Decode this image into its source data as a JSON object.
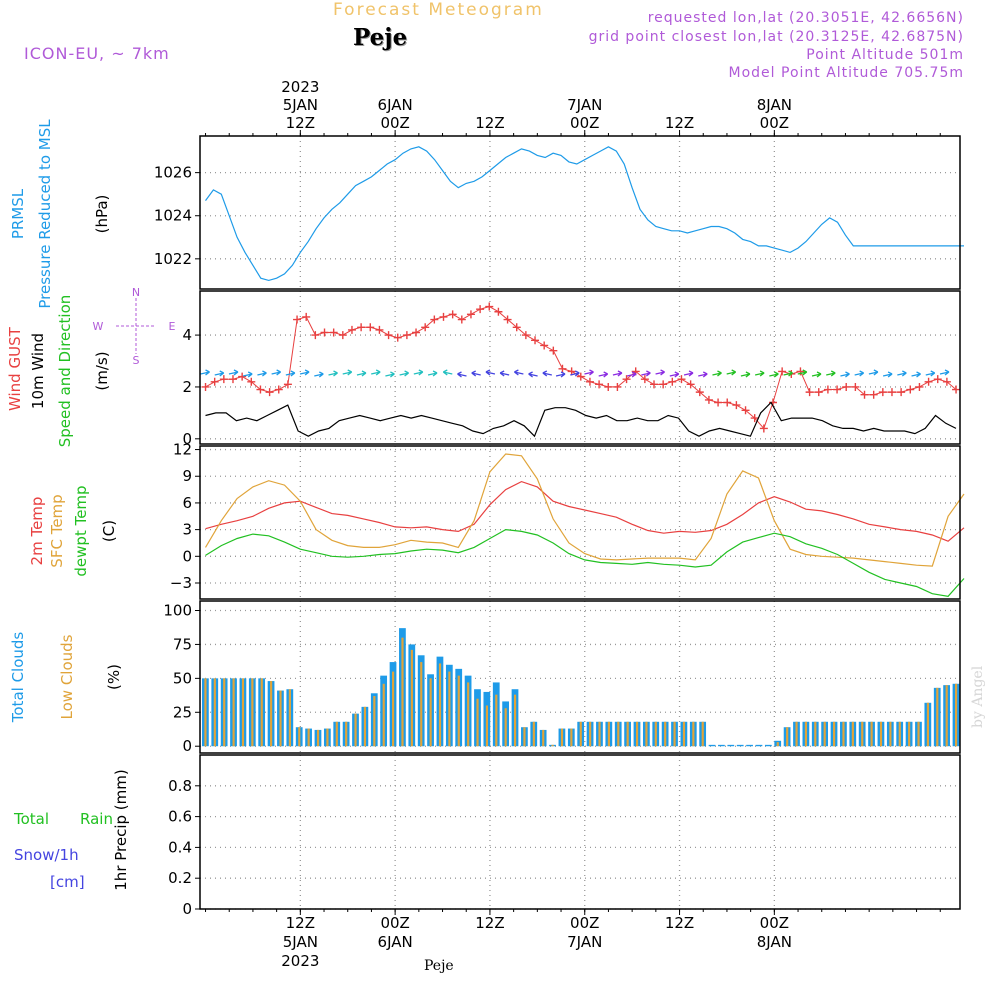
{
  "header": {
    "title": "Forecast Meteogram",
    "location": "Peje",
    "model": "ICON-EU, ~ 7km",
    "requested": "requested lon,lat (20.3051E, 42.6656N)",
    "gridpoint": "grid point closest lon,lat (20.3125E, 42.6875N)",
    "point_alt": "Point Altitude 501m",
    "model_alt": "Model Point Altitude 705.75m"
  },
  "footer": {
    "location": "Peje",
    "credit": "by Angel"
  },
  "time_axis": {
    "top_year": "2023",
    "ticks": [
      {
        "t": 12,
        "top": "12Z",
        "top2": "5JAN",
        "bottom": "12Z",
        "bottom2": "5JAN",
        "bottom3": "2023"
      },
      {
        "t": 24,
        "top": "00Z",
        "top2": "6JAN",
        "bottom": "00Z",
        "bottom2": "6JAN"
      },
      {
        "t": 36,
        "top": "12Z",
        "bottom": "12Z"
      },
      {
        "t": 48,
        "top": "00Z",
        "top2": "7JAN",
        "bottom": "00Z",
        "bottom2": "7JAN"
      },
      {
        "t": 60,
        "top": "12Z",
        "bottom": "12Z"
      },
      {
        "t": 72,
        "top": "00Z",
        "top2": "8JAN",
        "bottom": "00Z",
        "bottom2": "8JAN"
      }
    ]
  },
  "colors": {
    "pressure": "#1e9be8",
    "gust": "#e84040",
    "wind": "#000000",
    "temp2m": "#e84040",
    "sfctemp": "#e0a43a",
    "dewpt": "#22c022",
    "total_clouds": "#1e9be8",
    "low_clouds": "#e0a43a",
    "rain": "#22c022",
    "snow": "#4444e0",
    "header_purple": "#b05ad8"
  },
  "chart_data": [
    {
      "panel": "pressure",
      "type": "line",
      "label_colored": "PRMSL",
      "label_colored2": "Pressure Reduced to MSL",
      "unit": "(hPa)",
      "ylim": [
        1020.6,
        1027.7
      ],
      "yticks": [
        1022,
        1024,
        1026
      ],
      "series": [
        {
          "color_key": "pressure",
          "t": [
            0,
            1,
            2,
            3,
            4,
            5,
            6,
            7,
            8,
            9,
            10,
            11,
            12,
            13,
            14,
            15,
            16,
            17,
            18,
            19,
            20,
            21,
            22,
            23,
            24,
            25,
            26,
            27,
            28,
            29,
            30,
            31,
            32,
            33,
            34,
            35,
            36,
            37,
            38,
            39,
            40,
            41,
            42,
            43,
            44,
            45,
            46,
            47,
            48,
            49,
            50,
            51,
            52,
            53,
            54,
            55,
            56,
            57,
            58,
            59,
            60,
            61,
            62,
            63,
            64,
            65,
            66,
            67,
            68,
            69,
            70,
            71,
            72,
            73,
            74,
            75,
            76,
            77,
            78,
            79,
            80,
            81,
            82,
            83,
            84,
            85,
            86,
            87,
            88,
            89,
            90,
            91,
            92,
            93,
            94,
            95,
            96
          ],
          "values": [
            1024.7,
            1025.2,
            1025.0,
            1024.0,
            1023.0,
            1022.3,
            1021.7,
            1021.1,
            1021.0,
            1021.1,
            1021.3,
            1021.7,
            1022.3,
            1022.8,
            1023.4,
            1023.9,
            1024.3,
            1024.6,
            1025.0,
            1025.4,
            1025.6,
            1025.8,
            1026.1,
            1026.4,
            1026.6,
            1026.9,
            1027.1,
            1027.2,
            1027.0,
            1026.6,
            1026.1,
            1025.6,
            1025.3,
            1025.5,
            1025.6,
            1025.8,
            1026.1,
            1026.4,
            1026.7,
            1026.9,
            1027.1,
            1027.0,
            1026.8,
            1026.7,
            1026.9,
            1026.8,
            1026.5,
            1026.4,
            1026.6,
            1026.8,
            1027.0,
            1027.2,
            1027.0,
            1026.4,
            1025.3,
            1024.3,
            1023.8,
            1023.5,
            1023.4,
            1023.3,
            1023.3,
            1023.2,
            1023.3,
            1023.4,
            1023.5,
            1023.5,
            1023.4,
            1023.2,
            1022.9,
            1022.8,
            1022.6,
            1022.6,
            1022.5,
            1022.4,
            1022.3,
            1022.5,
            1022.8,
            1023.2,
            1023.6,
            1023.9,
            1023.7,
            1023.1,
            1022.6,
            1022.6,
            1022.6,
            1022.6,
            1022.6,
            1022.6,
            1022.6,
            1022.6,
            1022.6,
            1022.6,
            1022.6,
            1022.6,
            1022.6,
            1022.6,
            1022.6
          ]
        }
      ]
    },
    {
      "panel": "wind",
      "type": "line",
      "label_line1": "Wind GUST",
      "label_line2": "10m Wind",
      "label_line3": "Speed and Direction",
      "unit": "(m/s)",
      "compass": [
        "N",
        "W",
        "E",
        "S"
      ],
      "ylim": [
        -0.2,
        5.7
      ],
      "yticks": [
        0,
        2,
        4
      ],
      "series": [
        {
          "name": "Wind GUST",
          "color_key": "gust",
          "marker": "+",
          "values": [
            2.0,
            2.2,
            2.3,
            2.3,
            2.4,
            2.2,
            1.9,
            1.8,
            1.9,
            2.1,
            4.6,
            4.7,
            4.0,
            4.1,
            4.1,
            4.0,
            4.2,
            4.3,
            4.3,
            4.2,
            4.0,
            3.9,
            4.0,
            4.1,
            4.3,
            4.6,
            4.7,
            4.8,
            4.6,
            4.8,
            5.0,
            5.1,
            4.9,
            4.6,
            4.3,
            4.0,
            3.8,
            3.6,
            3.4,
            2.7,
            2.6,
            2.4,
            2.2,
            2.1,
            2.0,
            2.0,
            2.3,
            2.6,
            2.3,
            2.1,
            2.1,
            2.2,
            2.3,
            2.1,
            1.8,
            1.5,
            1.4,
            1.4,
            1.3,
            1.1,
            0.8,
            0.4,
            1.4,
            2.6,
            2.5,
            2.6,
            1.8,
            1.8,
            1.9,
            1.9,
            2.0,
            2.0,
            1.7,
            1.7,
            1.8,
            1.8,
            1.8,
            1.9,
            2.0,
            2.2,
            2.3,
            2.2,
            1.9
          ]
        },
        {
          "name": "10m Wind",
          "color_key": "wind",
          "values": [
            0.9,
            1.0,
            1.0,
            0.7,
            0.8,
            0.7,
            0.9,
            1.1,
            1.3,
            0.3,
            0.1,
            0.3,
            0.4,
            0.7,
            0.8,
            0.9,
            0.8,
            0.7,
            0.8,
            0.9,
            0.8,
            0.9,
            0.8,
            0.7,
            0.6,
            0.5,
            0.3,
            0.2,
            0.4,
            0.5,
            0.7,
            0.5,
            0.1,
            1.1,
            1.2,
            1.2,
            1.1,
            0.9,
            0.8,
            0.9,
            0.7,
            0.7,
            0.8,
            0.7,
            0.7,
            0.9,
            0.8,
            0.3,
            0.1,
            0.3,
            0.4,
            0.3,
            0.2,
            0.1,
            1.0,
            1.4,
            0.7,
            0.8,
            0.8,
            0.8,
            0.7,
            0.5,
            0.4,
            0.4,
            0.3,
            0.4,
            0.3,
            0.3,
            0.3,
            0.2,
            0.4,
            0.9,
            0.6,
            0.4
          ]
        }
      ]
    },
    {
      "panel": "temperature",
      "type": "line",
      "label_line1": "2m Temp",
      "label_line2": "SFC Temp",
      "label_line3": "dewpt Temp",
      "unit": "(C)",
      "ylim": [
        -4.8,
        12.4
      ],
      "yticks": [
        -3,
        0,
        3,
        6,
        9,
        12
      ],
      "series": [
        {
          "name": "2m Temp",
          "color_key": "temp2m",
          "t": [
            0,
            2,
            4,
            6,
            8,
            10,
            12,
            14,
            16,
            18,
            20,
            22,
            24,
            26,
            28,
            30,
            32,
            34,
            36,
            38,
            40,
            42,
            44,
            46,
            48,
            50,
            52,
            54,
            56,
            58,
            60,
            62,
            64,
            66,
            68,
            70,
            72,
            74,
            76,
            78,
            80,
            82,
            84,
            86,
            88,
            90,
            92,
            94,
            96
          ],
          "values": [
            3.1,
            3.6,
            4.0,
            4.5,
            5.4,
            6.0,
            6.2,
            5.5,
            4.8,
            4.6,
            4.2,
            3.8,
            3.3,
            3.2,
            3.3,
            3.0,
            2.8,
            3.6,
            5.8,
            7.5,
            8.4,
            7.8,
            6.2,
            5.6,
            5.2,
            4.8,
            4.4,
            3.6,
            2.9,
            2.6,
            2.8,
            2.7,
            2.9,
            3.6,
            4.7,
            6.0,
            6.7,
            6.1,
            5.3,
            5.1,
            4.7,
            4.2,
            3.6,
            3.3,
            3.0,
            2.8,
            2.4,
            1.7,
            3.2
          ]
        },
        {
          "name": "SFC Temp",
          "color_key": "sfctemp",
          "t": [
            0,
            2,
            4,
            6,
            8,
            10,
            12,
            14,
            16,
            18,
            20,
            22,
            24,
            26,
            28,
            30,
            32,
            34,
            36,
            38,
            40,
            42,
            44,
            46,
            48,
            50,
            52,
            54,
            56,
            58,
            60,
            62,
            64,
            66,
            68,
            70,
            72,
            74,
            76,
            78,
            80,
            82,
            84,
            86,
            88,
            90,
            92,
            94,
            96
          ],
          "values": [
            1.0,
            4.0,
            6.5,
            7.8,
            8.5,
            8.0,
            6.2,
            3.0,
            1.8,
            1.2,
            1.0,
            1.0,
            1.3,
            1.8,
            1.6,
            1.5,
            1.0,
            4.0,
            9.5,
            11.5,
            11.3,
            8.7,
            4.2,
            1.5,
            0.3,
            -0.3,
            -0.4,
            -0.3,
            -0.2,
            -0.2,
            -0.2,
            -0.4,
            2.0,
            7.0,
            9.6,
            8.8,
            4.0,
            0.8,
            0.2,
            0.0,
            -0.1,
            -0.2,
            -0.4,
            -0.6,
            -0.8,
            -1.0,
            -1.1,
            4.5,
            7.0
          ]
        },
        {
          "name": "dewpt Temp",
          "color_key": "dewpt",
          "t": [
            0,
            2,
            4,
            6,
            8,
            10,
            12,
            14,
            16,
            18,
            20,
            22,
            24,
            26,
            28,
            30,
            32,
            34,
            36,
            38,
            40,
            42,
            44,
            46,
            48,
            50,
            52,
            54,
            56,
            58,
            60,
            62,
            64,
            66,
            68,
            70,
            72,
            74,
            76,
            78,
            80,
            82,
            84,
            86,
            88,
            90,
            92,
            94,
            96
          ],
          "values": [
            0.1,
            1.2,
            2.0,
            2.5,
            2.3,
            1.6,
            0.8,
            0.4,
            0.0,
            -0.1,
            0.0,
            0.2,
            0.3,
            0.6,
            0.8,
            0.7,
            0.4,
            1.0,
            2.0,
            3.0,
            2.8,
            2.4,
            1.5,
            0.3,
            -0.4,
            -0.7,
            -0.8,
            -0.9,
            -0.7,
            -0.9,
            -1.0,
            -1.2,
            -1.0,
            0.5,
            1.6,
            2.1,
            2.6,
            2.2,
            1.4,
            0.9,
            0.2,
            -0.8,
            -1.8,
            -2.6,
            -3.0,
            -3.4,
            -4.2,
            -4.5,
            -2.5
          ]
        }
      ]
    },
    {
      "panel": "clouds",
      "type": "bar",
      "label_line1": "Total Clouds",
      "label_line2": "Low Clouds",
      "unit": "(%)",
      "ylim": [
        -5,
        107
      ],
      "yticks": [
        0,
        25,
        50,
        75,
        100
      ],
      "series": [
        {
          "name": "Total Clouds",
          "color_key": "total_clouds",
          "values": [
            50,
            50,
            50,
            50,
            50,
            50,
            50,
            48,
            41,
            42,
            14,
            13,
            12,
            13,
            18,
            18,
            24,
            29,
            39,
            52,
            62,
            87,
            75,
            67,
            53,
            66,
            60,
            57,
            52,
            42,
            40,
            47,
            33,
            42,
            14,
            18,
            12,
            1,
            13,
            13,
            18,
            18,
            18,
            18,
            18,
            18,
            18,
            18,
            18,
            18,
            18,
            18,
            18,
            18,
            1,
            1,
            1,
            1,
            1,
            1,
            1,
            4,
            14,
            18,
            18,
            18,
            18,
            18,
            18,
            18,
            18,
            18,
            18,
            18,
            18,
            18,
            18,
            32,
            43,
            45,
            46
          ]
        },
        {
          "name": "Low Clouds",
          "color_key": "low_clouds",
          "values": [
            50,
            50,
            50,
            50,
            50,
            50,
            50,
            48,
            41,
            42,
            14,
            13,
            12,
            13,
            18,
            18,
            24,
            29,
            37,
            46,
            55,
            80,
            71,
            62,
            50,
            61,
            55,
            52,
            47,
            35,
            30,
            38,
            28,
            38,
            14,
            18,
            12,
            1,
            13,
            13,
            18,
            18,
            18,
            18,
            18,
            18,
            18,
            18,
            18,
            18,
            18,
            18,
            18,
            18,
            0,
            0,
            0,
            0,
            0,
            0,
            0,
            3,
            14,
            18,
            18,
            18,
            18,
            18,
            18,
            18,
            18,
            18,
            18,
            18,
            18,
            18,
            18,
            32,
            43,
            45,
            46
          ]
        }
      ]
    },
    {
      "panel": "precip",
      "type": "bar",
      "label_line1_a": "Total",
      "label_line1_b": "Rain",
      "label_line2": "Snow/1h",
      "label_line3": "[cm]",
      "unit": "1hr Precip (mm)",
      "ylim": [
        0,
        1.0
      ],
      "yticks": [
        0,
        0.2,
        0.4,
        0.6,
        0.8
      ],
      "series": [
        {
          "name": "Total Rain",
          "color_key": "rain",
          "values": []
        }
      ]
    }
  ]
}
